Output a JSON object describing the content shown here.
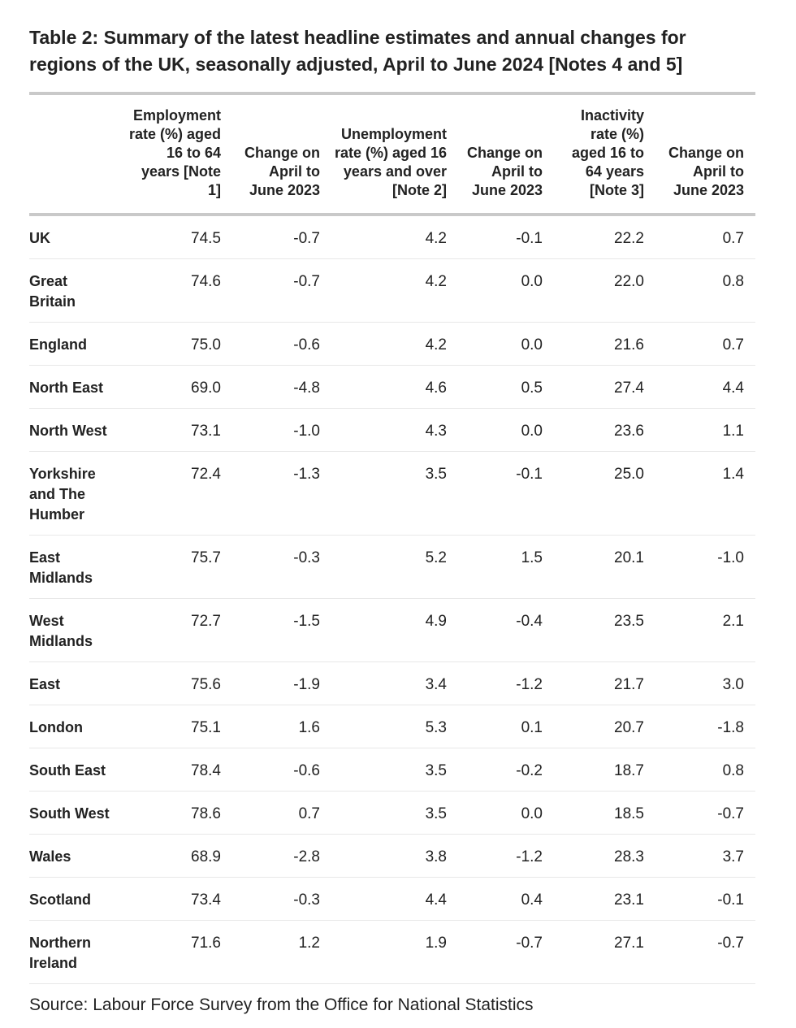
{
  "colors": {
    "text": "#222222",
    "border_heavy": "#c9c9c9",
    "border_light": "#e8e8e8",
    "bg": "#ffffff"
  },
  "chart_data": {
    "type": "table",
    "title": "Table 2: Summary of the latest headline estimates and annual changes for regions of the UK, seasonally adjusted, April to June 2024 [Notes 4 and 5]",
    "source": "Source: Labour Force Survey from the Office for National Statistics",
    "columns": [
      "",
      "Employment rate (%) aged 16 to 64 years [Note 1]",
      "Change on April to June 2023",
      "Unemployment rate (%) aged 16 years and over [Note 2]",
      "Change on April to June 2023",
      "Inactivity rate (%) aged 16 to 64 years [Note 3]",
      "Change on April to June 2023"
    ],
    "rows": [
      {
        "region": "UK",
        "values": [
          "74.5",
          "-0.7",
          "4.2",
          "-0.1",
          "22.2",
          "0.7"
        ]
      },
      {
        "region": "Great Britain",
        "values": [
          "74.6",
          "-0.7",
          "4.2",
          "0.0",
          "22.0",
          "0.8"
        ]
      },
      {
        "region": "England",
        "values": [
          "75.0",
          "-0.6",
          "4.2",
          "0.0",
          "21.6",
          "0.7"
        ]
      },
      {
        "region": "North East",
        "values": [
          "69.0",
          "-4.8",
          "4.6",
          "0.5",
          "27.4",
          "4.4"
        ]
      },
      {
        "region": "North West",
        "values": [
          "73.1",
          "-1.0",
          "4.3",
          "0.0",
          "23.6",
          "1.1"
        ]
      },
      {
        "region": "Yorkshire and The Humber",
        "values": [
          "72.4",
          "-1.3",
          "3.5",
          "-0.1",
          "25.0",
          "1.4"
        ]
      },
      {
        "region": "East Midlands",
        "values": [
          "75.7",
          "-0.3",
          "5.2",
          "1.5",
          "20.1",
          "-1.0"
        ]
      },
      {
        "region": "West Midlands",
        "values": [
          "72.7",
          "-1.5",
          "4.9",
          "-0.4",
          "23.5",
          "2.1"
        ]
      },
      {
        "region": "East",
        "values": [
          "75.6",
          "-1.9",
          "3.4",
          "-1.2",
          "21.7",
          "3.0"
        ]
      },
      {
        "region": "London",
        "values": [
          "75.1",
          "1.6",
          "5.3",
          "0.1",
          "20.7",
          "-1.8"
        ]
      },
      {
        "region": "South East",
        "values": [
          "78.4",
          "-0.6",
          "3.5",
          "-0.2",
          "18.7",
          "0.8"
        ]
      },
      {
        "region": "South West",
        "values": [
          "78.6",
          "0.7",
          "3.5",
          "0.0",
          "18.5",
          "-0.7"
        ]
      },
      {
        "region": "Wales",
        "values": [
          "68.9",
          "-2.8",
          "3.8",
          "-1.2",
          "28.3",
          "3.7"
        ]
      },
      {
        "region": "Scotland",
        "values": [
          "73.4",
          "-0.3",
          "4.4",
          "0.4",
          "23.1",
          "-0.1"
        ]
      },
      {
        "region": "Northern Ireland",
        "values": [
          "71.6",
          "1.2",
          "1.9",
          "-0.7",
          "27.1",
          "-0.7"
        ]
      }
    ]
  }
}
